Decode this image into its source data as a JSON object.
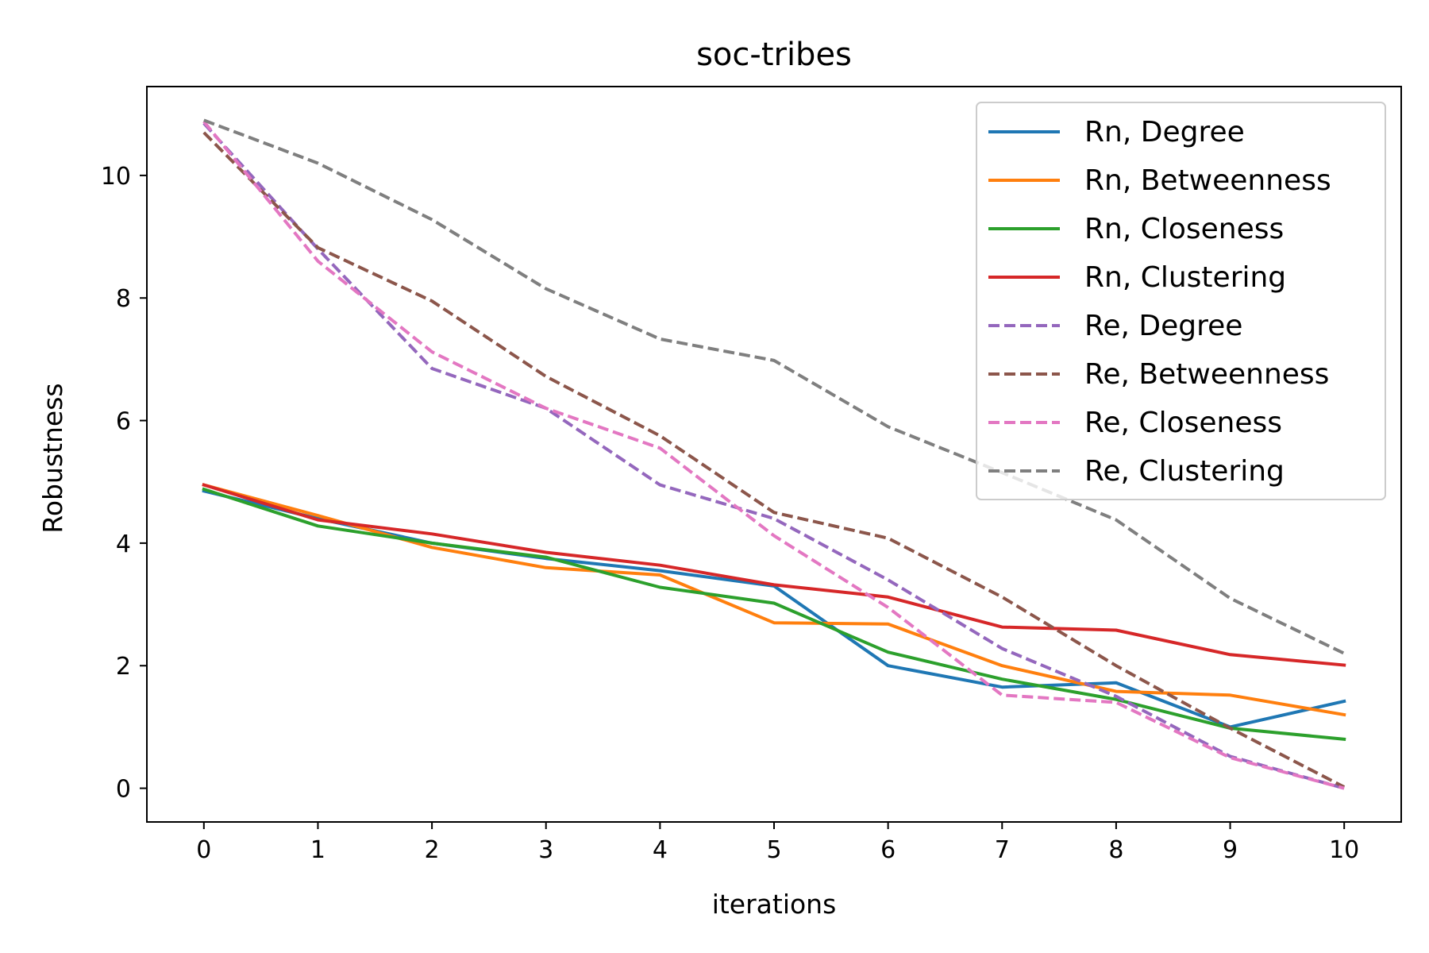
{
  "chart_data": {
    "type": "line",
    "title": "soc-tribes",
    "xlabel": "iterations",
    "ylabel": "Robustness",
    "x": [
      0,
      1,
      2,
      3,
      4,
      5,
      6,
      7,
      8,
      9,
      10
    ],
    "xticks": [
      "0",
      "1",
      "2",
      "3",
      "4",
      "5",
      "6",
      "7",
      "8",
      "9",
      "10"
    ],
    "yticks": [
      "0",
      "2",
      "4",
      "6",
      "8",
      "10"
    ],
    "ytick_values": [
      0,
      2,
      4,
      6,
      8,
      10
    ],
    "xlim": [
      -0.5,
      10.5
    ],
    "ylim": [
      -0.55,
      11.45
    ],
    "grid": false,
    "legend_position": "top-right",
    "series": [
      {
        "name": "Rn, Degree",
        "color": "#1f77b4",
        "dash": "solid",
        "values": [
          4.85,
          4.4,
          4.0,
          3.75,
          3.55,
          3.3,
          2.0,
          1.65,
          1.72,
          1.0,
          1.42
        ]
      },
      {
        "name": "Rn, Betweenness",
        "color": "#ff7f0e",
        "dash": "solid",
        "values": [
          4.95,
          4.45,
          3.93,
          3.6,
          3.48,
          2.7,
          2.68,
          2.0,
          1.58,
          1.52,
          1.2
        ]
      },
      {
        "name": "Rn, Closeness",
        "color": "#2ca02c",
        "dash": "solid",
        "values": [
          4.88,
          4.28,
          4.0,
          3.77,
          3.28,
          3.02,
          2.22,
          1.78,
          1.45,
          0.98,
          0.8
        ]
      },
      {
        "name": "Rn, Clustering",
        "color": "#d62728",
        "dash": "solid",
        "values": [
          4.95,
          4.38,
          4.15,
          3.85,
          3.64,
          3.32,
          3.12,
          2.63,
          2.58,
          2.18,
          2.01
        ]
      },
      {
        "name": "Re, Degree",
        "color": "#9467bd",
        "dash": "dashed",
        "values": [
          10.85,
          8.8,
          6.85,
          6.2,
          4.95,
          4.4,
          3.4,
          2.28,
          1.5,
          0.52,
          0.0
        ]
      },
      {
        "name": "Re, Betweenness",
        "color": "#8c564b",
        "dash": "dashed",
        "values": [
          10.7,
          8.82,
          7.95,
          6.72,
          5.75,
          4.5,
          4.08,
          3.12,
          2.0,
          0.98,
          0.02
        ]
      },
      {
        "name": "Re, Closeness",
        "color": "#e377c2",
        "dash": "dashed",
        "values": [
          10.88,
          8.6,
          7.12,
          6.2,
          5.55,
          4.12,
          2.95,
          1.52,
          1.4,
          0.5,
          0.0
        ]
      },
      {
        "name": "Re, Clustering",
        "color": "#7f7f7f",
        "dash": "dashed",
        "values": [
          10.9,
          10.2,
          9.28,
          8.15,
          7.33,
          6.98,
          5.9,
          5.15,
          4.38,
          3.1,
          2.2
        ]
      }
    ]
  }
}
